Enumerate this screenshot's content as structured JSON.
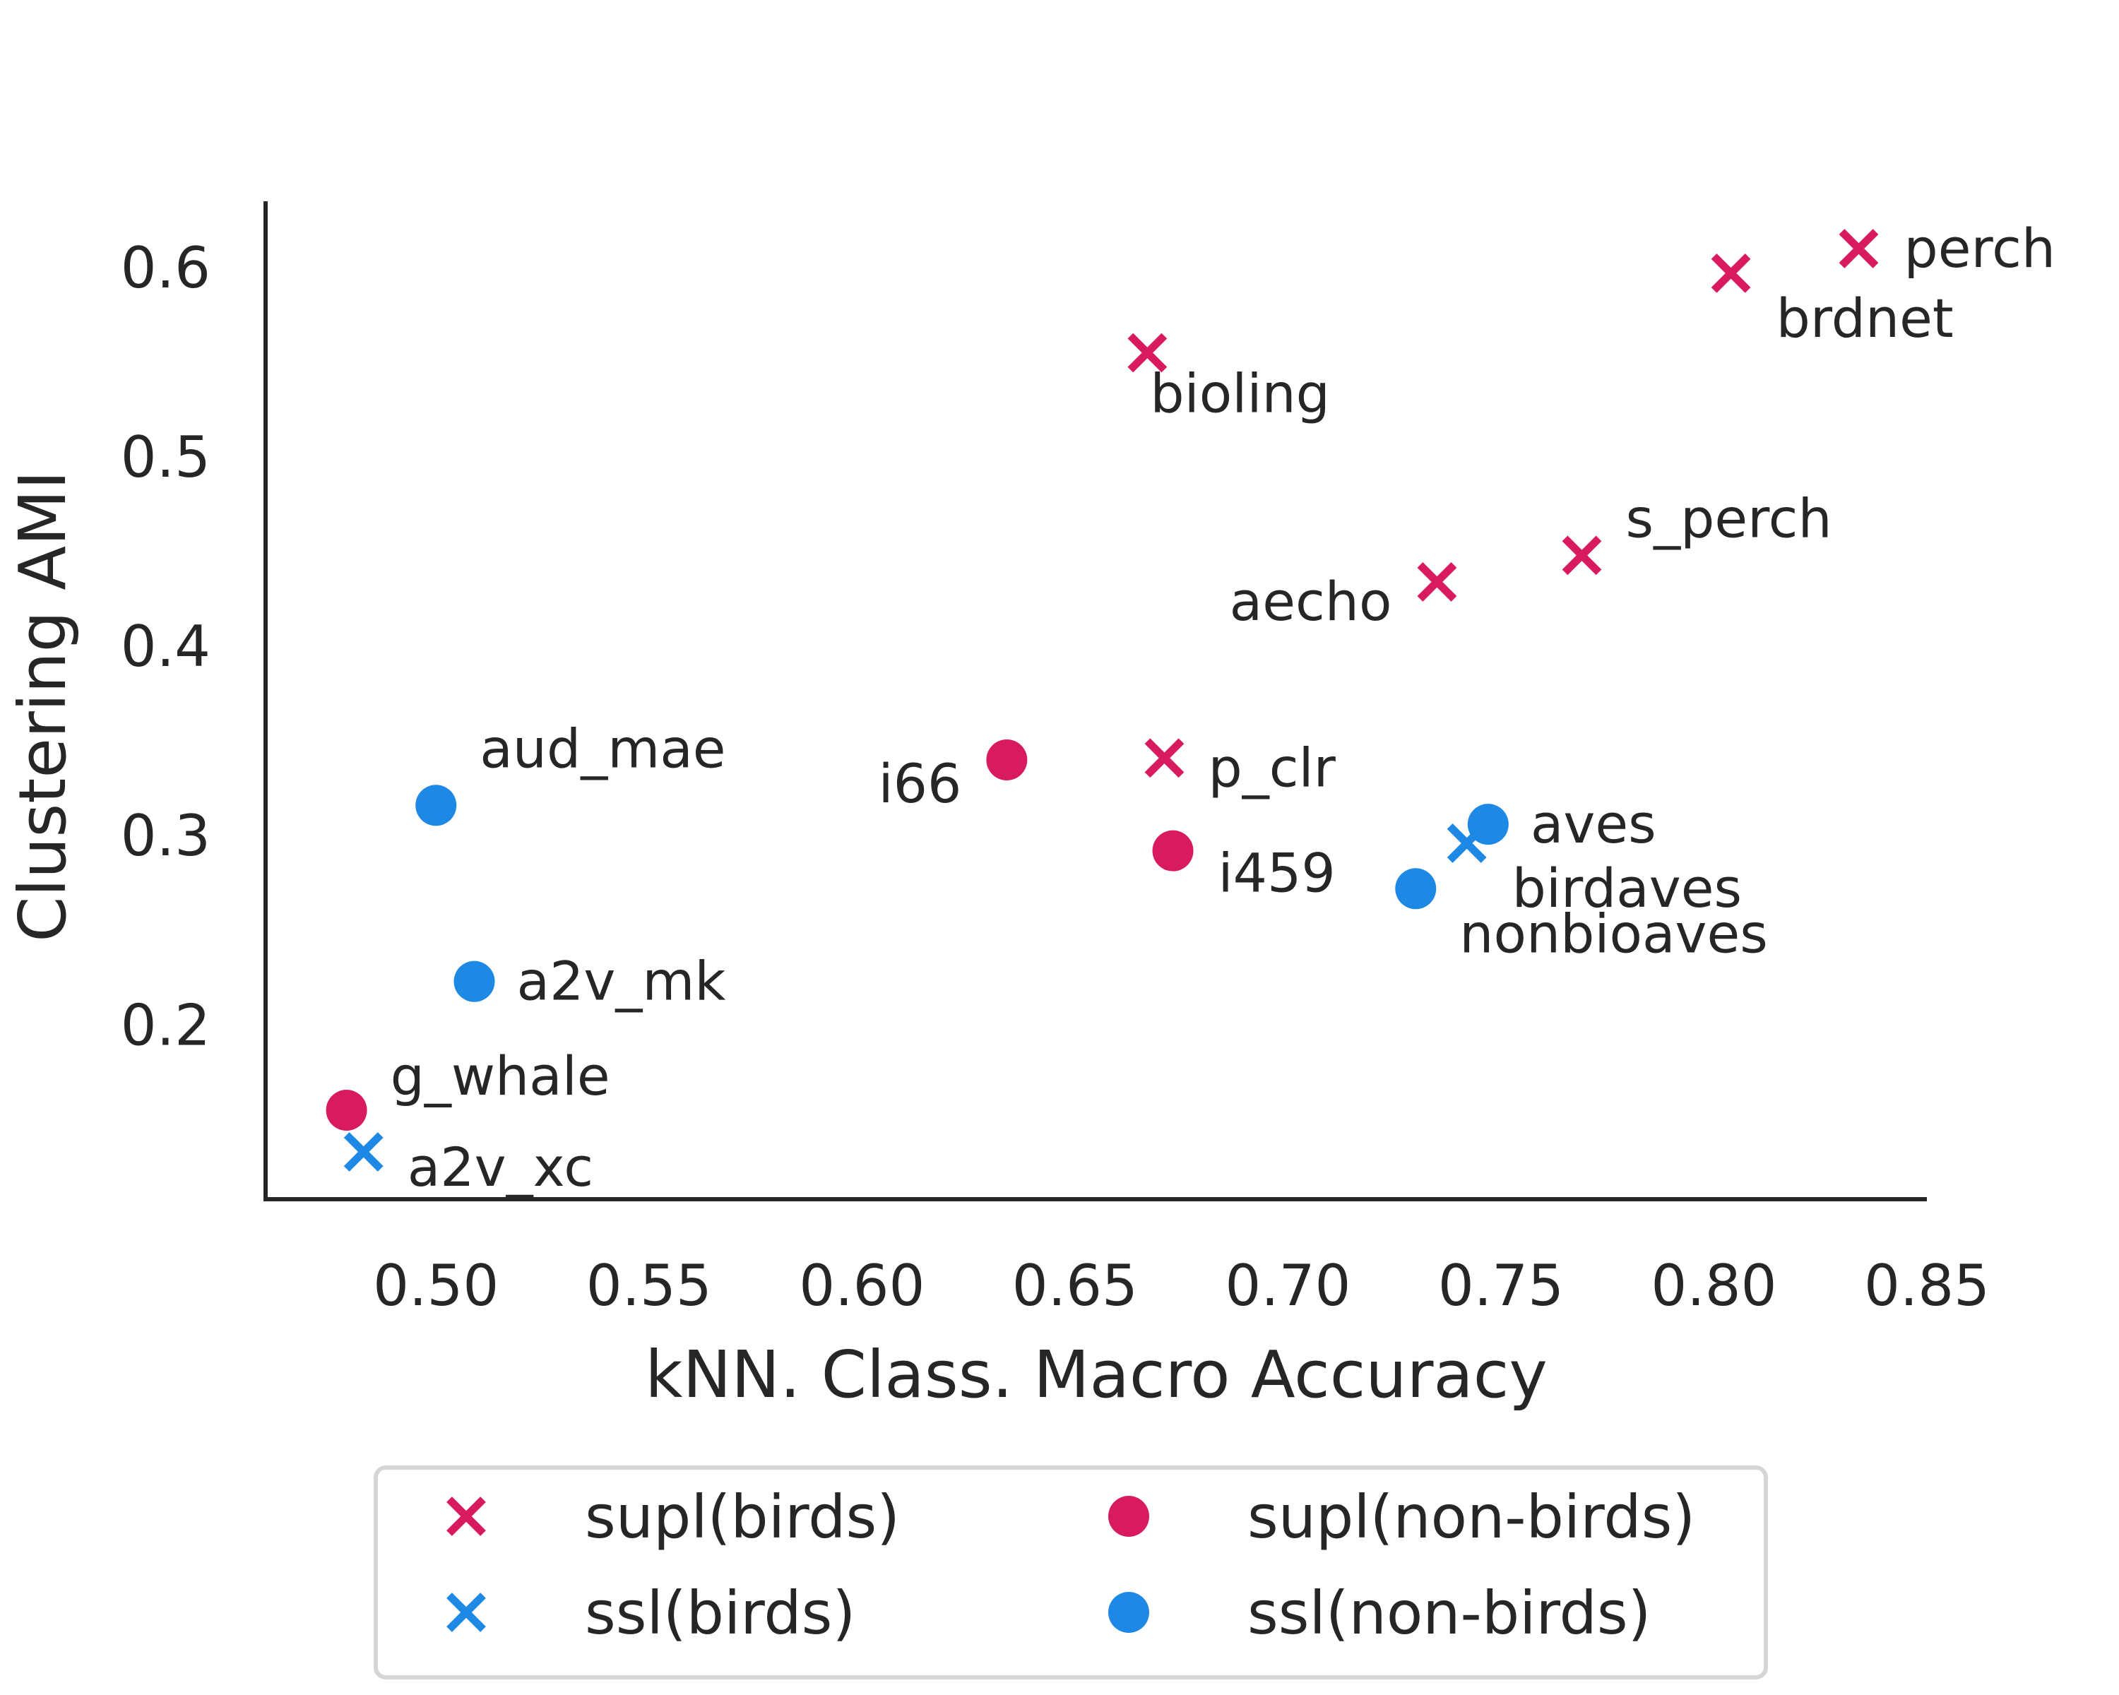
{
  "chart_data": {
    "type": "scatter",
    "title": "",
    "xlabel": "kNN. Class. Macro Accuracy",
    "ylabel": "Clustering AMI",
    "xlim": [
      0.46,
      0.85
    ],
    "ylim": [
      0.108,
      0.635
    ],
    "xticks": [
      "0.50",
      "0.55",
      "0.60",
      "0.65",
      "0.70",
      "0.75",
      "0.80",
      "0.85"
    ],
    "yticks": [
      "0.2",
      "0.3",
      "0.4",
      "0.5",
      "0.6"
    ],
    "grid": false,
    "legend_position": "bottom",
    "colors": {
      "supl": "#d81b60",
      "ssl": "#1e88e5"
    },
    "series": [
      {
        "name": "supl(birds)",
        "marker": "x",
        "color": "#d81b60",
        "points": [
          {
            "label": "perch",
            "x": 0.834,
            "y": 0.61
          },
          {
            "label": "brdnet",
            "x": 0.804,
            "y": 0.597
          },
          {
            "label": "bioling",
            "x": 0.667,
            "y": 0.555
          },
          {
            "label": "s_perch",
            "x": 0.769,
            "y": 0.448
          },
          {
            "label": "aecho",
            "x": 0.735,
            "y": 0.434
          },
          {
            "label": "p_clr",
            "x": 0.671,
            "y": 0.341
          }
        ]
      },
      {
        "name": "supl(non-birds)",
        "marker": "o",
        "color": "#d81b60",
        "points": [
          {
            "label": "i66",
            "x": 0.634,
            "y": 0.34
          },
          {
            "label": "i459",
            "x": 0.673,
            "y": 0.292
          },
          {
            "label": "g_whale",
            "x": 0.479,
            "y": 0.155
          }
        ]
      },
      {
        "name": "ssl(birds)",
        "marker": "x",
        "color": "#1e88e5",
        "points": [
          {
            "label": "birdaves",
            "x": 0.742,
            "y": 0.296
          },
          {
            "label": "a2v_xc",
            "x": 0.483,
            "y": 0.133
          }
        ]
      },
      {
        "name": "ssl(non-birds)",
        "marker": "o",
        "color": "#1e88e5",
        "points": [
          {
            "label": "aves",
            "x": 0.747,
            "y": 0.306
          },
          {
            "label": "nonbioaves",
            "x": 0.73,
            "y": 0.272
          },
          {
            "label": "aud_mae",
            "x": 0.5,
            "y": 0.316
          },
          {
            "label": "a2v_mk",
            "x": 0.509,
            "y": 0.223
          }
        ]
      }
    ]
  }
}
